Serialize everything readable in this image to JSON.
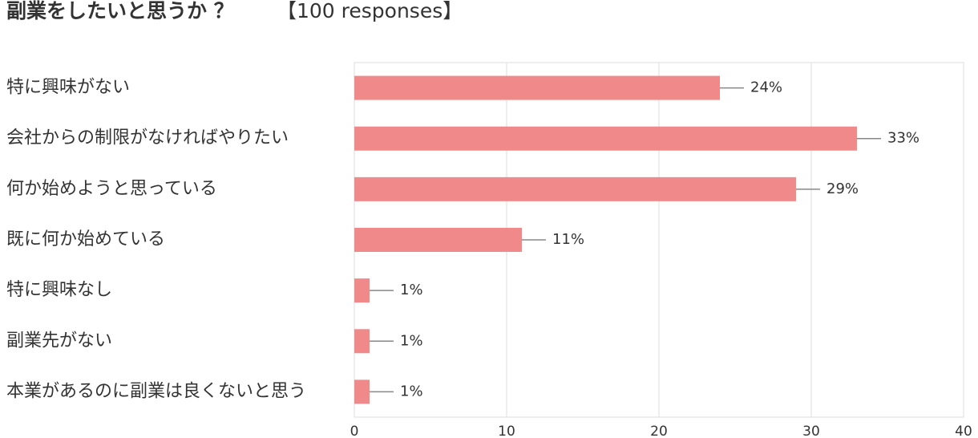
{
  "chart_data": {
    "type": "barh",
    "title": "副業をしたいと思うか ？",
    "subtitle": "【100 responses】",
    "categories": [
      "特に興味がない",
      "会社からの制限がなければやりたい",
      "何か始めようと思っている",
      "既に何か始めている",
      "特に興味なし",
      "副業先がない",
      "本業があるのに副業は良くないと思う"
    ],
    "values": [
      24,
      33,
      29,
      11,
      1,
      1,
      1
    ],
    "value_labels": [
      "24%",
      "33%",
      "29%",
      "11%",
      "1%",
      "1%",
      "1%"
    ],
    "color": "#f08a8a",
    "xlim": [
      0,
      40
    ],
    "xticks": [
      0,
      10,
      20,
      30,
      40
    ],
    "grid": true
  }
}
